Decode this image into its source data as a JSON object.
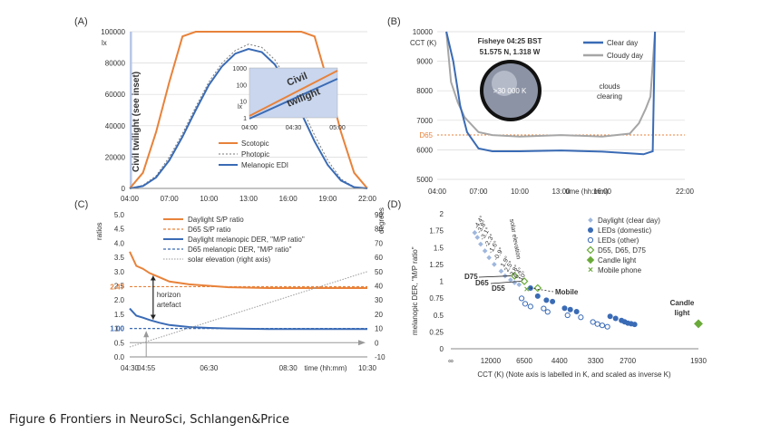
{
  "figure_caption": "Figure 6   Frontiers in NeuroSci, Schlangen&Price",
  "colors": {
    "scotopic": "#e8823a",
    "melanopic": "#3a6bb5",
    "cloudy": "#a6a6a6",
    "photopic": "#7a7a7a",
    "d65": "#e8823a",
    "diamond": "#9fb7dd",
    "grid": "#d9d9d9",
    "twilight_band": "#b8c8e8"
  },
  "chart_data": [
    {
      "panel": "(A)",
      "type": "line",
      "ylabel": "lx",
      "ylim": [
        0,
        100000
      ],
      "y_ticks": [
        "0",
        "20000",
        "40000",
        "60000",
        "80000",
        "100000"
      ],
      "x_ticks": [
        "04:00",
        "07:00",
        "10:00",
        "13:00",
        "16:00",
        "19:00",
        "22:00"
      ],
      "band_label": "Civil twilight (see inset)",
      "series": [
        {
          "name": "Scotopic",
          "x": [
            "04:00",
            "05:00",
            "06:00",
            "07:00",
            "08:00",
            "09:00",
            "17:00",
            "18:00",
            "19:00",
            "20:00",
            "21:00",
            "22:00"
          ],
          "y": [
            0,
            10000,
            36000,
            68000,
            97000,
            100000,
            100000,
            97000,
            68000,
            36000,
            10000,
            0
          ]
        },
        {
          "name": "Photopic",
          "x": [
            "04:00",
            "05:00",
            "06:00",
            "07:00",
            "08:00",
            "09:00",
            "10:00",
            "11:00",
            "12:00",
            "13:00",
            "14:00",
            "15:00",
            "16:00",
            "17:00",
            "18:00",
            "19:00",
            "20:00",
            "21:00",
            "22:00"
          ],
          "y": [
            0,
            2000,
            8000,
            20000,
            35000,
            52000,
            68000,
            80000,
            88000,
            92000,
            90000,
            82000,
            68000,
            52000,
            34000,
            18000,
            6000,
            1000,
            0
          ]
        },
        {
          "name": "Melanopic EDI",
          "x": [
            "04:00",
            "05:00",
            "06:00",
            "07:00",
            "08:00",
            "09:00",
            "10:00",
            "11:00",
            "12:00",
            "13:00",
            "14:00",
            "15:00",
            "16:00",
            "17:00",
            "18:00",
            "19:00",
            "20:00",
            "21:00",
            "22:00"
          ],
          "y": [
            0,
            1500,
            7000,
            18000,
            33000,
            50000,
            66000,
            78000,
            86000,
            89000,
            87000,
            79000,
            65000,
            48000,
            30000,
            15000,
            5000,
            800,
            0
          ]
        }
      ],
      "inset": {
        "ylabel": "lx",
        "y_ticks": [
          "1",
          "10",
          "100",
          "1000"
        ],
        "x_ticks": [
          "04:00",
          "04:30",
          "05:00"
        ],
        "labels": [
          "Civil",
          "twilight"
        ]
      }
    },
    {
      "panel": "(B)",
      "type": "line",
      "ylabel": "CCT (K)",
      "ylim": [
        5000,
        10000
      ],
      "y_ticks": [
        "5000",
        "6000",
        "7000",
        "8000",
        "9000",
        "10000"
      ],
      "x_ticks": [
        "04:00",
        "07:00",
        "10:00",
        "13:00",
        "16:00",
        "22:00"
      ],
      "x_axis_title": "time (hh:mm)",
      "d65_label": "D65",
      "d65_value": 6504,
      "inset_title": "Fisheye 04:25 BST",
      "inset_coords": "51.575 N, 1.318 W",
      "inset_value": ">30 000 K",
      "annotation": "clouds clearing",
      "series": [
        {
          "name": "Clear day",
          "x": [
            "04:40",
            "05:10",
            "05:40",
            "06:10",
            "07:00",
            "08:00",
            "10:00",
            "13:00",
            "16:00",
            "19:00",
            "19:40",
            "19:50"
          ],
          "y": [
            10000,
            9000,
            7500,
            6600,
            6050,
            5950,
            5950,
            5980,
            5940,
            5850,
            5950,
            10000
          ]
        },
        {
          "name": "Cloudy day",
          "x": [
            "04:40",
            "05:00",
            "05:30",
            "06:00",
            "07:00",
            "08:00",
            "10:00",
            "13:00",
            "16:00",
            "18:00",
            "18:40",
            "19:10",
            "19:30",
            "19:50"
          ],
          "y": [
            10000,
            8300,
            7600,
            7100,
            6600,
            6500,
            6450,
            6500,
            6450,
            6550,
            6900,
            7400,
            7800,
            10000
          ]
        }
      ]
    },
    {
      "panel": "(C)",
      "type": "line",
      "ylabel": "ratios",
      "ylabel_right": "degrees",
      "ylim": [
        0,
        5
      ],
      "ylim_right": [
        -10,
        90
      ],
      "y_ticks": [
        "0.0",
        "0.5",
        "1.0",
        "1.5",
        "2.0",
        "2.5",
        "3.0",
        "3.5",
        "4.0",
        "4.5",
        "5.0"
      ],
      "y_ticks_right": [
        "-10",
        "0",
        "10",
        "20",
        "30",
        "40",
        "50",
        "60",
        "70",
        "80",
        "90"
      ],
      "x_ticks": [
        "04:30",
        "06:30",
        "08:30",
        "10:30"
      ],
      "x_axis_title": "time (hh:mm)",
      "marker_time": "04:55",
      "ref_sp": "2.47",
      "ref_mp": "1.00",
      "annotation": "horizon artefact",
      "series": [
        {
          "name": "Daylight S/P ratio",
          "x": [
            "04:30",
            "04:40",
            "04:50",
            "05:00",
            "05:15",
            "05:30",
            "06:00",
            "06:30",
            "07:00",
            "08:00",
            "09:00",
            "10:30"
          ],
          "y": [
            3.7,
            3.2,
            3.1,
            2.95,
            2.8,
            2.65,
            2.55,
            2.5,
            2.45,
            2.42,
            2.42,
            2.42
          ]
        },
        {
          "name": "D65 S/P ratio",
          "y": 2.47
        },
        {
          "name": "Daylight melanopic DER, \"M/P ratio\"",
          "x": [
            "04:30",
            "04:40",
            "04:50",
            "05:00",
            "05:15",
            "05:30",
            "06:00",
            "06:30",
            "07:00",
            "08:00",
            "09:00",
            "10:30"
          ],
          "y": [
            1.7,
            1.45,
            1.38,
            1.3,
            1.2,
            1.12,
            1.05,
            1.02,
            1.0,
            0.98,
            0.98,
            0.98
          ]
        },
        {
          "name": "D65 melanopic DER, \"M/P ratio\"",
          "y": 1.0
        },
        {
          "name": "solar elevation (right axis)",
          "x": [
            "04:30",
            "10:30"
          ],
          "y": [
            -3,
            50
          ]
        }
      ]
    },
    {
      "panel": "(D)",
      "type": "scatter",
      "ylabel": "melanopic DER, \"M/P ratio\"",
      "xlabel": "CCT (K) (Note axis is labelled in K, and scaled as inverse K)",
      "ylim": [
        0,
        2
      ],
      "y_ticks": [
        "0",
        "0.25",
        "0.5",
        "0.75",
        "1",
        "1.25",
        "1.5",
        "1.75",
        "2"
      ],
      "x_ticks": [
        "∞",
        "12000",
        "6500",
        "4400",
        "3300",
        "2700",
        "1930"
      ],
      "solar_elevation_label": "solar elevation",
      "elevation_labels": [
        "-4.4°",
        "-3.8°",
        "-3.1°",
        "-2.3°",
        "-1.6°",
        "-0.9°",
        "1.9°",
        "2.5°",
        "3.8°",
        "6.4°",
        "10°"
      ],
      "callouts": {
        "d75": "D75",
        "d65": "D65",
        "d55": "D55",
        "mobile": "Mobile",
        "candle": "Candle light"
      },
      "legend": [
        "Daylight (clear day)",
        "LEDs (domestic)",
        "LEDs (other)",
        "D55, D65, D75",
        "Candle light",
        "Mobile phone"
      ],
      "series": [
        {
          "name": "Daylight (clear day)",
          "cct": [
            20000,
            18000,
            16000,
            14000,
            12500,
            11000,
            9500,
            8800,
            8000,
            7500,
            7000
          ],
          "y": [
            1.72,
            1.65,
            1.55,
            1.45,
            1.35,
            1.25,
            1.15,
            1.08,
            1.02,
            0.98,
            0.95
          ]
        },
        {
          "name": "LEDs (domestic)",
          "cct": [
            6000,
            5500,
            5000,
            4700,
            4200,
            4000,
            3800,
            3000,
            2900,
            2800,
            2750,
            2700,
            2650,
            2600
          ],
          "y": [
            0.9,
            0.78,
            0.72,
            0.7,
            0.6,
            0.58,
            0.55,
            0.48,
            0.45,
            0.42,
            0.4,
            0.38,
            0.37,
            0.36
          ]
        },
        {
          "name": "LEDs (other)",
          "cct": [
            6500,
            6200,
            5800,
            5000,
            4800,
            4000,
            3600,
            3300,
            3200,
            3100,
            3000
          ],
          "y": [
            0.8,
            0.72,
            0.68,
            0.65,
            0.6,
            0.55,
            0.52,
            0.45,
            0.42,
            0.4,
            0.38
          ]
        },
        {
          "name": "D55, D65, D75",
          "cct": [
            7500,
            6500,
            5500
          ],
          "y": [
            1.08,
            1.0,
            0.9
          ]
        },
        {
          "name": "Candle light",
          "cct": [
            1930
          ],
          "y": [
            0.37
          ]
        },
        {
          "name": "Mobile phone",
          "cct": [
            6300
          ],
          "y": [
            0.88
          ]
        }
      ]
    }
  ]
}
